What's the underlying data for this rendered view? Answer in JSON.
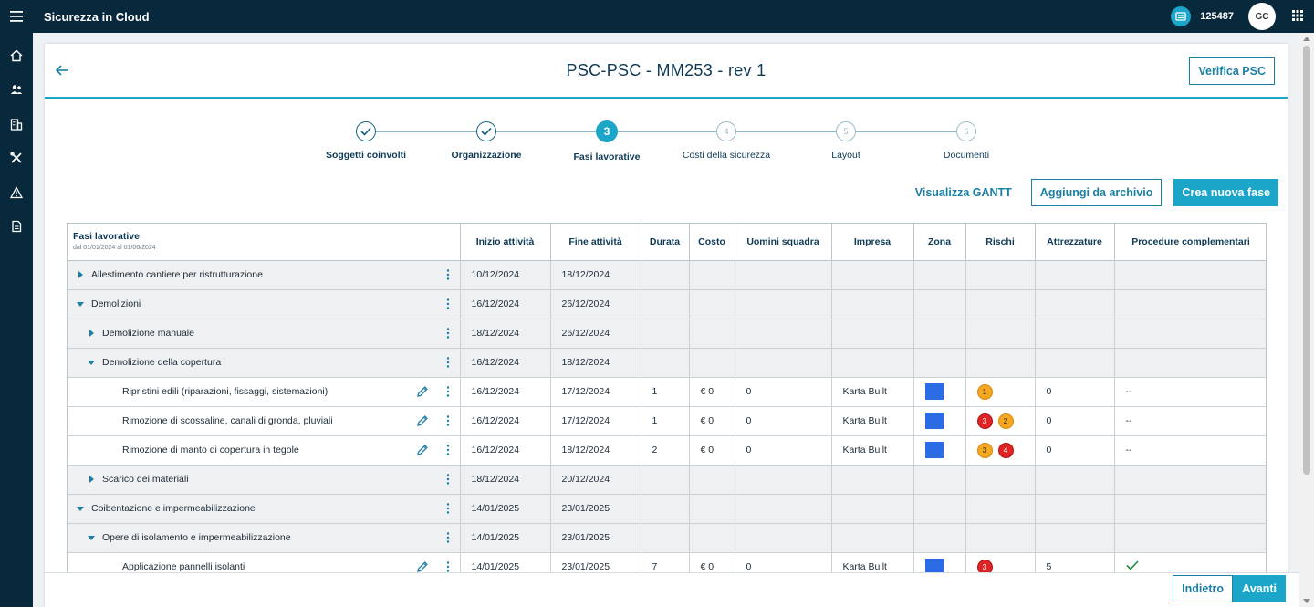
{
  "app": {
    "title": "Sicurezza in Cloud",
    "code": "125487",
    "avatar_initials": "GC"
  },
  "sidebar": {
    "icons": [
      "home-icon",
      "users-icon",
      "building-icon",
      "tools-icon",
      "warning-icon",
      "document-icon"
    ]
  },
  "page": {
    "title": "PSC-PSC - MM253 - rev 1",
    "verify_label": "Verifica PSC"
  },
  "stepper": {
    "steps": [
      {
        "number": "1",
        "label": "Soggetti coinvolti",
        "state": "done"
      },
      {
        "number": "2",
        "label": "Organizzazione",
        "state": "done"
      },
      {
        "number": "3",
        "label": "Fasi lavorative",
        "state": "active"
      },
      {
        "number": "4",
        "label": "Costi della sicurezza",
        "state": "todo"
      },
      {
        "number": "5",
        "label": "Layout",
        "state": "todo"
      },
      {
        "number": "6",
        "label": "Documenti",
        "state": "todo"
      }
    ]
  },
  "actions": {
    "gantt_label": "Visualizza GANTT",
    "archive_label": "Aggiungi da archivio",
    "new_phase_label": "Crea nuova fase"
  },
  "table": {
    "headers": {
      "phases": "Fasi lavorative",
      "phases_range": "dal 01/01/2024 al 01/06/2024",
      "start": "Inizio attività",
      "end": "Fine attività",
      "duration": "Durata",
      "cost": "Costo",
      "team": "Uomini squadra",
      "company": "Impresa",
      "zone": "Zona",
      "risks": "Rischi",
      "equipment": "Attrezzature",
      "procedures": "Procedure complementari"
    },
    "rows": [
      {
        "label": "Allestimento cantiere per ristrutturazione",
        "start": "10/12/2024",
        "end": "18/12/2024"
      },
      {
        "label": "Demolizioni",
        "start": "16/12/2024",
        "end": "26/12/2024"
      },
      {
        "label": "Demolizione manuale",
        "start": "18/12/2024",
        "end": "26/12/2024"
      },
      {
        "label": "Demolizione della copertura",
        "start": "16/12/2024",
        "end": "18/12/2024"
      },
      {
        "label": "Ripristini edili (riparazioni, fissaggi, sistemazioni)",
        "start": "16/12/2024",
        "end": "17/12/2024",
        "duration": "1",
        "cost": "€ 0",
        "team": "0",
        "company": "Karta Built",
        "equipment": "0",
        "procedures": "--",
        "risks": [
          "1"
        ]
      },
      {
        "label": "Rimozione di scossaline, canali di gronda, pluviali",
        "start": "16/12/2024",
        "end": "17/12/2024",
        "duration": "1",
        "cost": "€ 0",
        "team": "0",
        "company": "Karta Built",
        "equipment": "0",
        "procedures": "--",
        "risks": [
          "3",
          "2"
        ]
      },
      {
        "label": "Rimozione di manto di copertura in tegole",
        "start": "16/12/2024",
        "end": "18/12/2024",
        "duration": "2",
        "cost": "€ 0",
        "team": "0",
        "company": "Karta Built",
        "equipment": "0",
        "procedures": "--",
        "risks": [
          "3",
          "4"
        ]
      },
      {
        "label": "Scarico dei materiali",
        "start": "18/12/2024",
        "end": "20/12/2024"
      },
      {
        "label": "Coibentazione e impermeabilizzazione",
        "start": "14/01/2025",
        "end": "23/01/2025"
      },
      {
        "label": "Opere di isolamento e impermeabilizzazione",
        "start": "14/01/2025",
        "end": "23/01/2025"
      },
      {
        "label": "Applicazione pannelli isolanti",
        "start": "14/01/2025",
        "end": "23/01/2025",
        "duration": "7",
        "cost": "€ 0",
        "team": "0",
        "company": "Karta Built",
        "equipment": "5",
        "risks": [
          "3"
        ]
      }
    ]
  },
  "footer": {
    "back_label": "Indietro",
    "next_label": "Avanti"
  },
  "colors": {
    "accent": "#1aa5c9",
    "dark": "#08283b",
    "zone": "#2b6be6",
    "risk_orange": "#f5a623",
    "risk_red": "#e02424"
  }
}
